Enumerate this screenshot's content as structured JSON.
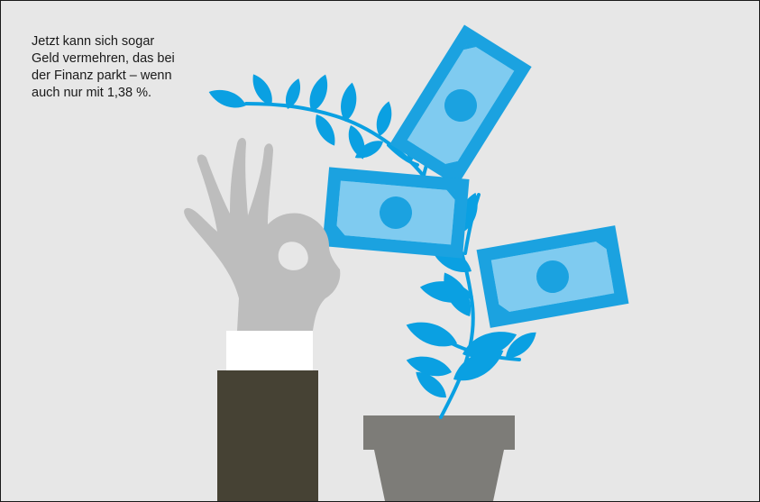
{
  "caption": "Jetzt kann sich sogar\nGeld vermehren, das bei\nder Finanz parkt – wenn\nauch nur mit 1,38 %.",
  "colors": {
    "background": "#e7e7e7",
    "plant": "#0aa0e2",
    "bill_dark": "#1ba2e0",
    "bill_light": "#7fcbf0",
    "hand": "#bdbdbd",
    "cuff": "#ffffff",
    "sleeve": "#464234",
    "pot": "#7d7c78"
  }
}
